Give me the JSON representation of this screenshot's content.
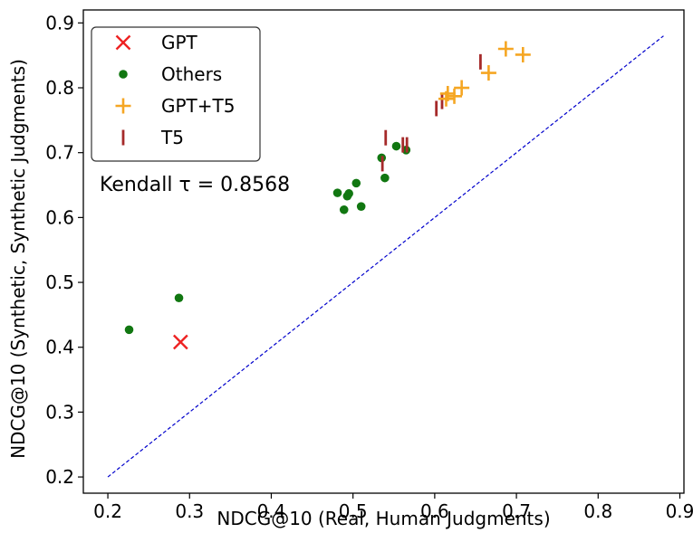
{
  "chart_data": {
    "type": "scatter",
    "xlabel": "NDCG@10 (Real, Human Judgments)",
    "ylabel": "NDCG@10 (Synthetic, Synthetic Judgments)",
    "xlim": [
      0.17,
      0.905
    ],
    "ylim": [
      0.175,
      0.92
    ],
    "x_ticks": [
      "0.2",
      "0.3",
      "0.4",
      "0.5",
      "0.6",
      "0.7",
      "0.8",
      "0.9"
    ],
    "y_ticks": [
      "0.2",
      "0.3",
      "0.4",
      "0.5",
      "0.6",
      "0.7",
      "0.8",
      "0.9"
    ],
    "legend_position": "top-left",
    "annotation": "Kendall τ = 0.8568",
    "reference_line": {
      "from": [
        0.2,
        0.2
      ],
      "to": [
        0.88,
        0.88
      ],
      "color": "#0000cc",
      "style": "dashed"
    },
    "series": [
      {
        "name": "GPT",
        "marker": "x",
        "color": "#ee2222",
        "points": [
          [
            0.289,
            0.408
          ]
        ]
      },
      {
        "name": "Others",
        "marker": "dot",
        "color": "#117711",
        "points": [
          [
            0.226,
            0.427
          ],
          [
            0.287,
            0.476
          ],
          [
            0.481,
            0.638
          ],
          [
            0.489,
            0.612
          ],
          [
            0.493,
            0.633
          ],
          [
            0.495,
            0.637
          ],
          [
            0.504,
            0.653
          ],
          [
            0.51,
            0.617
          ],
          [
            0.535,
            0.692
          ],
          [
            0.539,
            0.661
          ],
          [
            0.553,
            0.71
          ],
          [
            0.565,
            0.704
          ]
        ]
      },
      {
        "name": "GPT+T5",
        "marker": "plus",
        "color": "#f5a623",
        "points": [
          [
            0.614,
            0.783
          ],
          [
            0.616,
            0.791
          ],
          [
            0.624,
            0.787
          ],
          [
            0.633,
            0.8
          ],
          [
            0.666,
            0.823
          ],
          [
            0.687,
            0.86
          ],
          [
            0.708,
            0.851
          ]
        ]
      },
      {
        "name": "T5",
        "marker": "vline",
        "color": "#a52a2a",
        "points": [
          [
            0.536,
            0.683
          ],
          [
            0.54,
            0.723
          ],
          [
            0.561,
            0.712
          ],
          [
            0.566,
            0.712
          ],
          [
            0.602,
            0.768
          ],
          [
            0.609,
            0.779
          ],
          [
            0.656,
            0.84
          ]
        ]
      }
    ]
  }
}
